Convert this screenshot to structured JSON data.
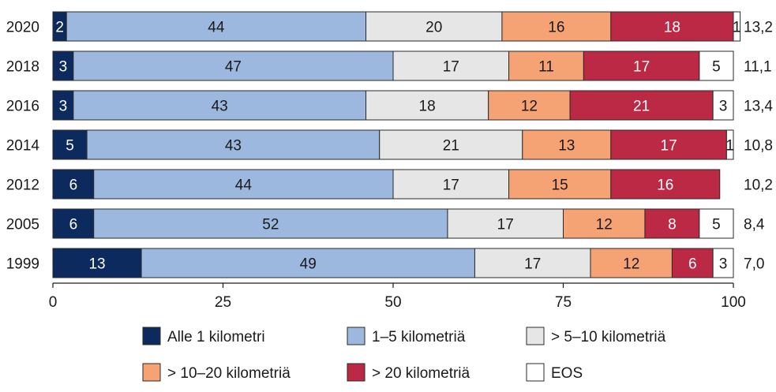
{
  "chart_data": {
    "type": "bar",
    "orientation": "horizontal",
    "stacked": true,
    "categories": [
      "2020",
      "2018",
      "2016",
      "2014",
      "2012",
      "2005",
      "1999"
    ],
    "series": [
      {
        "name": "Alle 1 kilometri",
        "color": "#0d2a5e",
        "label_color": "#ffffff",
        "values": [
          2,
          3,
          3,
          5,
          6,
          6,
          13
        ]
      },
      {
        "name": "1–5 kilometriä",
        "color": "#9cb8df",
        "label_color": "#1a1a1a",
        "values": [
          44,
          47,
          43,
          43,
          44,
          52,
          49
        ]
      },
      {
        "name": "> 5–10 kilometriä",
        "color": "#e6e6e6",
        "label_color": "#1a1a1a",
        "values": [
          20,
          17,
          18,
          21,
          17,
          17,
          17
        ]
      },
      {
        "name": "> 10–20 kilometriä",
        "color": "#f5a274",
        "label_color": "#1a1a1a",
        "values": [
          16,
          11,
          12,
          13,
          15,
          12,
          12
        ]
      },
      {
        "name": "> 20 kilometriä",
        "color": "#bb2944",
        "label_color": "#ffffff",
        "values": [
          18,
          17,
          21,
          17,
          16,
          8,
          6
        ]
      },
      {
        "name": "EOS",
        "color": "#ffffff",
        "label_color": "#1a1a1a",
        "values": [
          1,
          5,
          3,
          1,
          null,
          5,
          3
        ]
      }
    ],
    "right_labels": [
      "13,2",
      "11,1",
      "13,4",
      "10,8",
      "10,2",
      "8,4",
      "7,0"
    ],
    "xlim": [
      0,
      100
    ],
    "xticks": [
      "0",
      "25",
      "50",
      "75",
      "100"
    ],
    "grid": false,
    "legend_position": "bottom",
    "title": "",
    "xlabel": "",
    "ylabel": ""
  }
}
